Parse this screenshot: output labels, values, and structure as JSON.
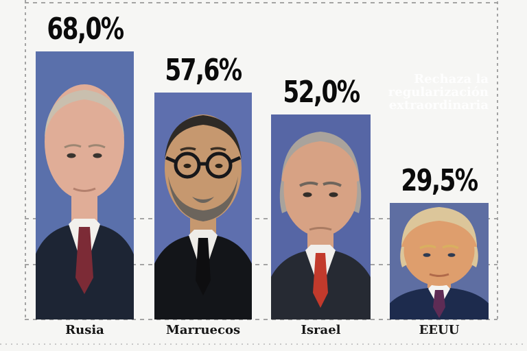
{
  "page": {
    "background_color": "#f6f6f4",
    "frame_line_color": "#a3a3a3",
    "bottom_rule_color": "#c6c6c6",
    "value_label_color": "#0b0b0b"
  },
  "watermark": {
    "full_text": "Rechaza la regularización extraordinaria",
    "lines": [
      "Rechaza la",
      "regularización",
      "extraordinaria"
    ],
    "color": "#fefefe"
  },
  "chart_data": {
    "type": "bar",
    "orientation": "vertical",
    "categories": [
      "Rusia",
      "Marruecos",
      "Israel",
      "EEUU"
    ],
    "values": [
      68.0,
      57.6,
      52.0,
      29.5
    ],
    "value_labels": [
      "68,0%",
      "57,6%",
      "52,0%",
      "29,5%"
    ],
    "unit": "percent",
    "decimal_separator": ",",
    "title": "",
    "xlabel": "",
    "ylabel": "",
    "ylim": [
      0,
      70
    ],
    "annotation": "Rechaza la regularización extraordinaria",
    "grid": "two dashed horizontal reference lines (~26% and ~14%), dashed left/top/right frame, dashed baseline, dotted bottom rule",
    "legend_position": "none",
    "bar_fill": "leader portrait photos on blue studio backgrounds",
    "portraits": [
      {
        "person": "putin-photo",
        "country": "Rusia",
        "colors": {
          "bg": "#5a70ab",
          "skin": "#e0ad97",
          "hair": "#c9bfae",
          "suit": "#1d2534",
          "shirt": "#f2f0ec",
          "tie": "#7c2b36"
        }
      },
      {
        "person": "mohammed-vi-photo",
        "country": "Marruecos",
        "colors": {
          "bg": "#5e6fae",
          "skin": "#c6986f",
          "hair": "#2e2a26",
          "beard": "#6b645c",
          "glasses": "#17171a",
          "suit": "#131519",
          "shirt": "#eeece8",
          "tie": "#0e0e10"
        }
      },
      {
        "person": "netanyahu-photo",
        "country": "Israel",
        "colors": {
          "bg": "#5666a5",
          "skin": "#d7a284",
          "hair": "#a9a39c",
          "suit": "#262a33",
          "shirt": "#f1efec",
          "tie": "#c23a2c"
        }
      },
      {
        "person": "trump-photo",
        "country": "EEUU",
        "colors": {
          "bg": "#5e6ea2",
          "skin": "#de9e6d",
          "hair": "#dcc69a",
          "suit": "#1d2b4d",
          "shirt": "#f4f4f2",
          "tie": "#5e2c55"
        }
      }
    ]
  }
}
